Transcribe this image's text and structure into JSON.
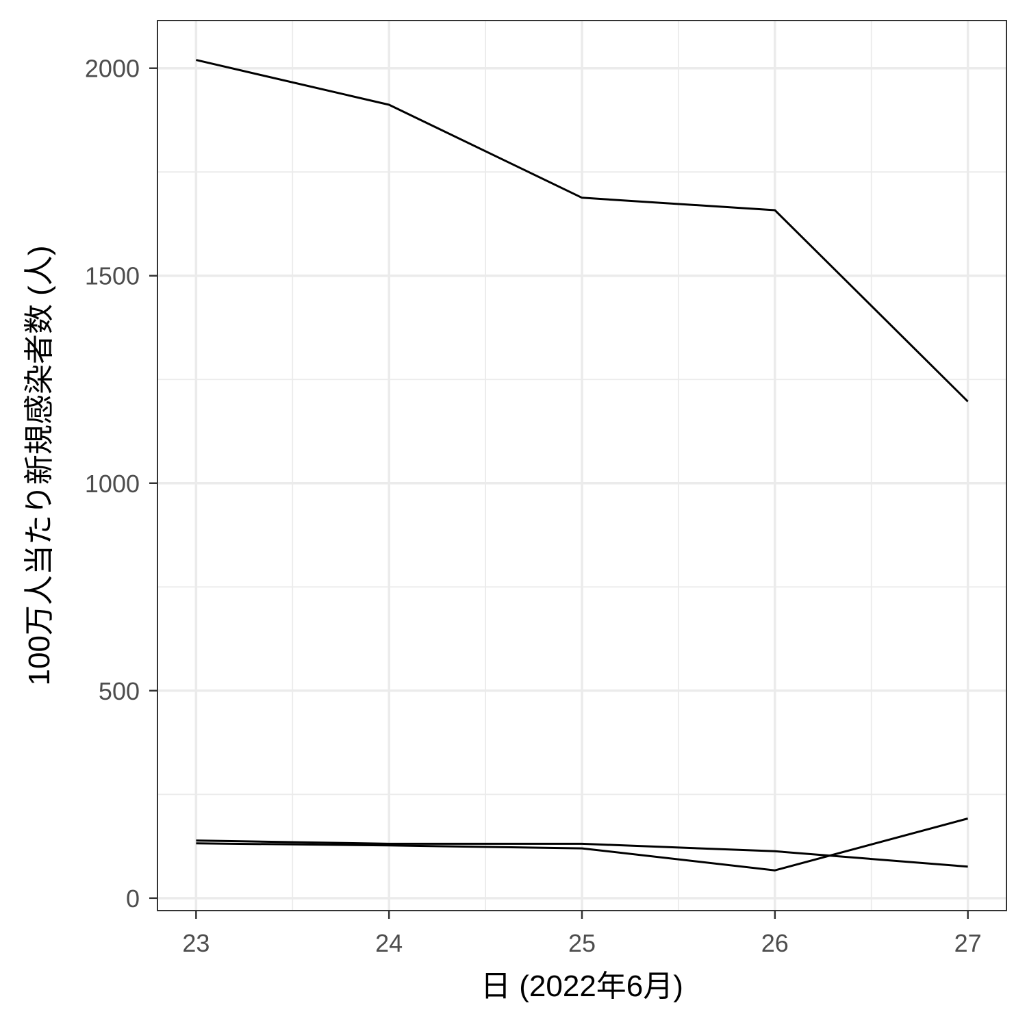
{
  "chart_data": {
    "type": "line",
    "title": "",
    "xlabel": "日 (2022年6月)",
    "ylabel": "100万人当たり新規感染者数 (人)",
    "x": [
      23,
      24,
      25,
      26,
      27
    ],
    "x_ticks": [
      "23",
      "24",
      "25",
      "26",
      "27"
    ],
    "y_ticks": [
      "0",
      "500",
      "1000",
      "1500",
      "2000"
    ],
    "xlim": [
      22.8,
      27.2
    ],
    "ylim": [
      -30,
      2115
    ],
    "grid": true,
    "legend": "none",
    "line_color": "#000000",
    "series": [
      {
        "values": [
          2020,
          1912,
          1688,
          1658,
          1197
        ]
      },
      {
        "values": [
          132,
          127,
          120,
          67,
          192
        ]
      },
      {
        "values": [
          139,
          131,
          131,
          113,
          76
        ]
      }
    ]
  }
}
